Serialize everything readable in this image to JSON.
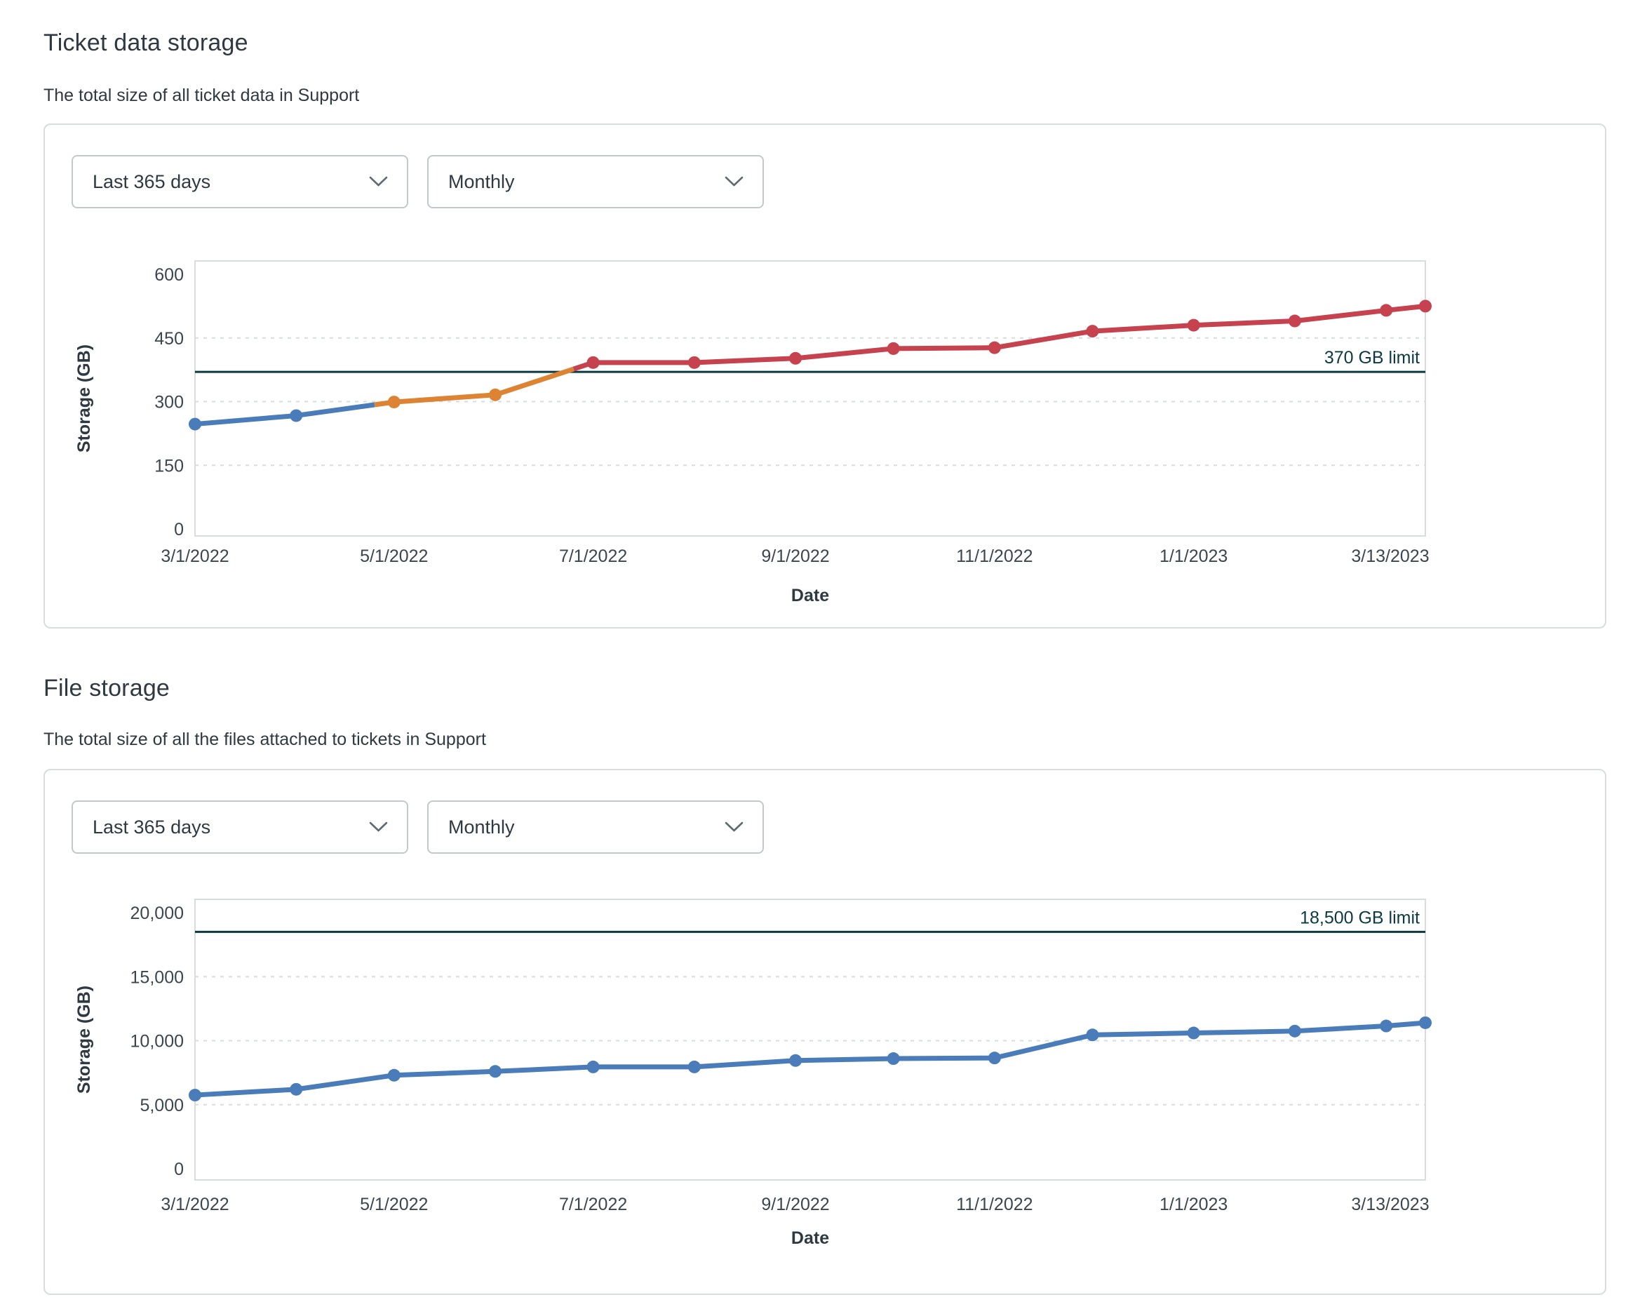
{
  "sections": [
    {
      "title": "Ticket data storage",
      "subtitle": "The total size of all ticket data in Support",
      "controls": {
        "range": "Last 365 days",
        "interval": "Monthly"
      }
    },
    {
      "title": "File storage",
      "subtitle": "The total size of all the files attached to tickets in Support",
      "controls": {
        "range": "Last 365 days",
        "interval": "Monthly"
      }
    }
  ],
  "icons": {
    "chevron_down": "chevron-down-icon"
  },
  "colors": {
    "blue": "#4a7cba",
    "orange": "#dc8434",
    "red": "#c5424e",
    "limit": "#0c3a43",
    "grid": "#d8dcde",
    "plot_border": "#d8dcde",
    "tick_text": "#3c464f",
    "axis_text": "#2f3941"
  },
  "chart_data": [
    {
      "type": "line",
      "title": "Ticket data storage",
      "xlabel": "Date",
      "ylabel": "Storage (GB)",
      "ylim": [
        0,
        600
      ],
      "grid": "dashed horizontal",
      "legend": "none",
      "total_days": 377,
      "x": [
        "3/1/2022",
        "4/1/2022",
        "5/1/2022",
        "6/1/2022",
        "7/1/2022",
        "8/1/2022",
        "9/1/2022",
        "10/1/2022",
        "11/1/2022",
        "12/1/2022",
        "1/1/2023",
        "2/1/2023",
        "3/1/2023",
        "3/13/2023"
      ],
      "x_days": [
        0,
        31,
        61,
        92,
        122,
        153,
        184,
        214,
        245,
        275,
        306,
        337,
        365,
        377
      ],
      "series": [
        {
          "name": "Ticket data storage (GB)",
          "values": [
            247,
            267,
            299,
            316,
            392,
            392,
            402,
            425,
            427,
            466,
            480,
            490,
            515,
            525
          ]
        }
      ],
      "point_colors": [
        "#4a7cba",
        "#4a7cba",
        "#dc8434",
        "#dc8434",
        "#c5424e",
        "#c5424e",
        "#c5424e",
        "#c5424e",
        "#c5424e",
        "#c5424e",
        "#c5424e",
        "#c5424e",
        "#c5424e",
        "#c5424e"
      ],
      "segments": [
        {
          "span": [
            0,
            1.8
          ],
          "color": "#4a7cba"
        },
        {
          "span": [
            1.8,
            3.8
          ],
          "color": "#dc8434"
        },
        {
          "span": [
            3.8,
            13
          ],
          "color": "#c5424e"
        }
      ],
      "limit": {
        "value": 370,
        "label": "370 GB limit"
      },
      "yticks": [
        {
          "value": 600,
          "label": "600",
          "grid": false
        },
        {
          "value": 450,
          "label": "450",
          "grid": true
        },
        {
          "value": 300,
          "label": "300",
          "grid": true
        },
        {
          "value": 150,
          "label": "150",
          "grid": true
        },
        {
          "value": 0,
          "label": "0",
          "grid": false
        }
      ],
      "xticks": [
        {
          "day": 0,
          "label": "3/1/2022",
          "dx": 0
        },
        {
          "day": 61,
          "label": "5/1/2022",
          "dx": 0
        },
        {
          "day": 122,
          "label": "7/1/2022",
          "dx": 0
        },
        {
          "day": 184,
          "label": "9/1/2022",
          "dx": 0
        },
        {
          "day": 245,
          "label": "11/1/2022",
          "dx": 0
        },
        {
          "day": 306,
          "label": "1/1/2023",
          "dx": 0
        },
        {
          "day": 377,
          "label": "3/13/2023",
          "dx": -50
        }
      ]
    },
    {
      "type": "line",
      "title": "File storage",
      "xlabel": "Date",
      "ylabel": "Storage (GB)",
      "ylim": [
        0,
        20000
      ],
      "grid": "dashed horizontal",
      "legend": "none",
      "total_days": 377,
      "x": [
        "3/1/2022",
        "4/1/2022",
        "5/1/2022",
        "6/1/2022",
        "7/1/2022",
        "8/1/2022",
        "9/1/2022",
        "10/1/2022",
        "11/1/2022",
        "12/1/2022",
        "1/1/2023",
        "2/1/2023",
        "3/1/2023",
        "3/13/2023"
      ],
      "x_days": [
        0,
        31,
        61,
        92,
        122,
        153,
        184,
        214,
        245,
        275,
        306,
        337,
        365,
        377
      ],
      "series": [
        {
          "name": "File storage (GB)",
          "values": [
            5750,
            6200,
            7300,
            7600,
            7950,
            7950,
            8450,
            8600,
            8650,
            10450,
            10600,
            10750,
            11150,
            11400
          ]
        }
      ],
      "point_colors": [
        "#4a7cba",
        "#4a7cba",
        "#4a7cba",
        "#4a7cba",
        "#4a7cba",
        "#4a7cba",
        "#4a7cba",
        "#4a7cba",
        "#4a7cba",
        "#4a7cba",
        "#4a7cba",
        "#4a7cba",
        "#4a7cba",
        "#4a7cba"
      ],
      "segments": [
        {
          "span": [
            0,
            13
          ],
          "color": "#4a7cba"
        }
      ],
      "limit": {
        "value": 18500,
        "label": "18,500 GB limit"
      },
      "yticks": [
        {
          "value": 20000,
          "label": "20,000",
          "grid": false
        },
        {
          "value": 15000,
          "label": "15,000",
          "grid": true
        },
        {
          "value": 10000,
          "label": "10,000",
          "grid": true
        },
        {
          "value": 5000,
          "label": "5,000",
          "grid": true
        },
        {
          "value": 0,
          "label": "0",
          "grid": false
        }
      ],
      "xticks": [
        {
          "day": 0,
          "label": "3/1/2022",
          "dx": 0
        },
        {
          "day": 61,
          "label": "5/1/2022",
          "dx": 0
        },
        {
          "day": 122,
          "label": "7/1/2022",
          "dx": 0
        },
        {
          "day": 184,
          "label": "9/1/2022",
          "dx": 0
        },
        {
          "day": 245,
          "label": "11/1/2022",
          "dx": 0
        },
        {
          "day": 306,
          "label": "1/1/2023",
          "dx": 0
        },
        {
          "day": 377,
          "label": "3/13/2023",
          "dx": -50
        }
      ]
    }
  ]
}
